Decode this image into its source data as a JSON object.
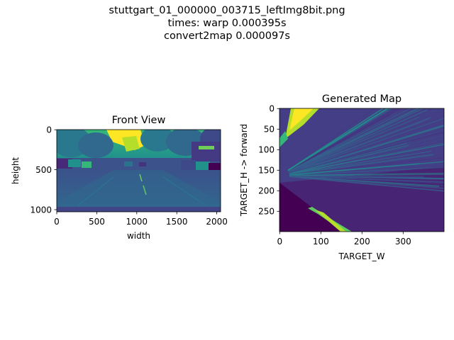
{
  "figure": {
    "suptitle_lines": [
      "stuttgart_01_000000_003715_leftImg8bit.png",
      "times: warp 0.000395s",
      "convert2map 0.000097s"
    ]
  },
  "colors": {
    "viridis_dark": "#440154",
    "viridis_mid": "#31688e",
    "viridis_teal": "#21918c",
    "viridis_green": "#35b779",
    "viridis_yellow": "#fde725"
  },
  "chart_data": [
    {
      "type": "heatmap",
      "title": "Front View",
      "xlabel": "width",
      "ylabel": "height",
      "xlim": [
        0,
        2048
      ],
      "ylim": [
        1024,
        0
      ],
      "x_ticks": [
        "0",
        "500",
        "1000",
        "1500",
        "2000"
      ],
      "y_ticks": [
        "0",
        "500",
        "1000"
      ],
      "colormap": "viridis",
      "content": "camera image (street scene)"
    },
    {
      "type": "heatmap",
      "title": "Generated Map",
      "xlabel": "TARGET_W",
      "ylabel": "TARGET_H -> forward",
      "xlim": [
        0,
        400
      ],
      "ylim": [
        300,
        0
      ],
      "x_ticks": [
        "0",
        "100",
        "200",
        "300"
      ],
      "y_ticks": [
        "0",
        "50",
        "100",
        "150",
        "200",
        "250"
      ],
      "colormap": "viridis",
      "content": "bird's-eye projection of the front view"
    }
  ]
}
